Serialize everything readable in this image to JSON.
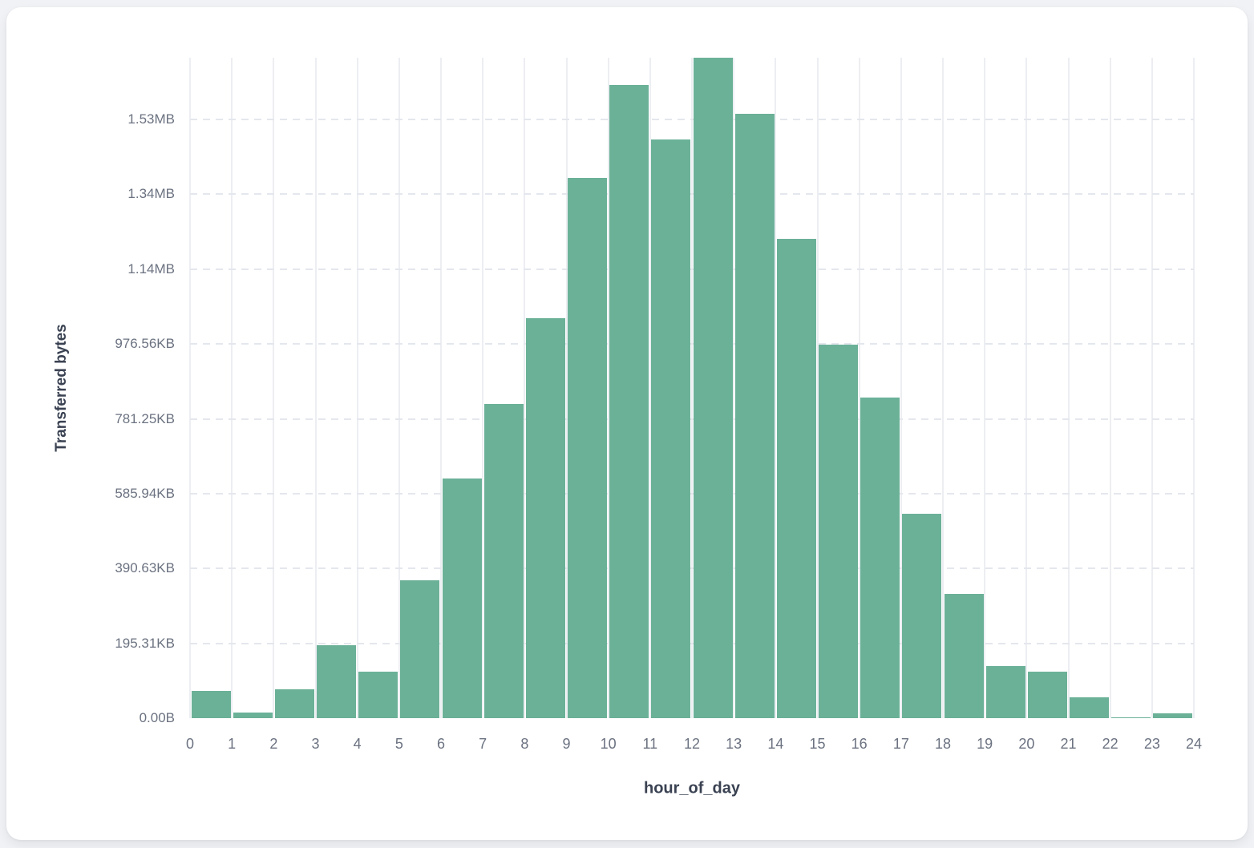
{
  "page": {
    "background": "#f1f2f5"
  },
  "card": {
    "background": "#ffffff"
  },
  "chart_data": {
    "type": "bar",
    "subtype": "histogram",
    "title": "",
    "xlabel": "hour_of_day",
    "ylabel": "Transferred bytes",
    "bar_color": "#6bb198",
    "grid": true,
    "legend": false,
    "xlim": [
      0,
      24
    ],
    "ylim_bytes": [
      0,
      1765000
    ],
    "bin_width_hours": 1,
    "categories_bin_start_hour": [
      0,
      1,
      2,
      3,
      4,
      5,
      6,
      7,
      8,
      9,
      10,
      11,
      12,
      13,
      14,
      15,
      16,
      17,
      18,
      19,
      20,
      21,
      22,
      23
    ],
    "values_bytes": [
      72000,
      14000,
      78000,
      195000,
      124000,
      369000,
      641000,
      839000,
      1069000,
      1444000,
      1692000,
      1546000,
      1765000,
      1615000,
      1281000,
      998000,
      856000,
      546000,
      332000,
      139000,
      125000,
      56000,
      3000,
      12000
    ],
    "x_ticks": [
      "0",
      "1",
      "2",
      "3",
      "4",
      "5",
      "6",
      "7",
      "8",
      "9",
      "10",
      "11",
      "12",
      "13",
      "14",
      "15",
      "16",
      "17",
      "18",
      "19",
      "20",
      "21",
      "22",
      "23",
      "24"
    ],
    "y_ticks": [
      {
        "bytes": 0,
        "label": "0.00B"
      },
      {
        "bytes": 200000,
        "label": "195.31KB"
      },
      {
        "bytes": 400000,
        "label": "390.63KB"
      },
      {
        "bytes": 600000,
        "label": "585.94KB"
      },
      {
        "bytes": 800000,
        "label": "781.25KB"
      },
      {
        "bytes": 1000000,
        "label": "976.56KB"
      },
      {
        "bytes": 1200000,
        "label": "1.14MB"
      },
      {
        "bytes": 1400000,
        "label": "1.34MB"
      },
      {
        "bytes": 1600000,
        "label": "1.53MB"
      }
    ]
  }
}
